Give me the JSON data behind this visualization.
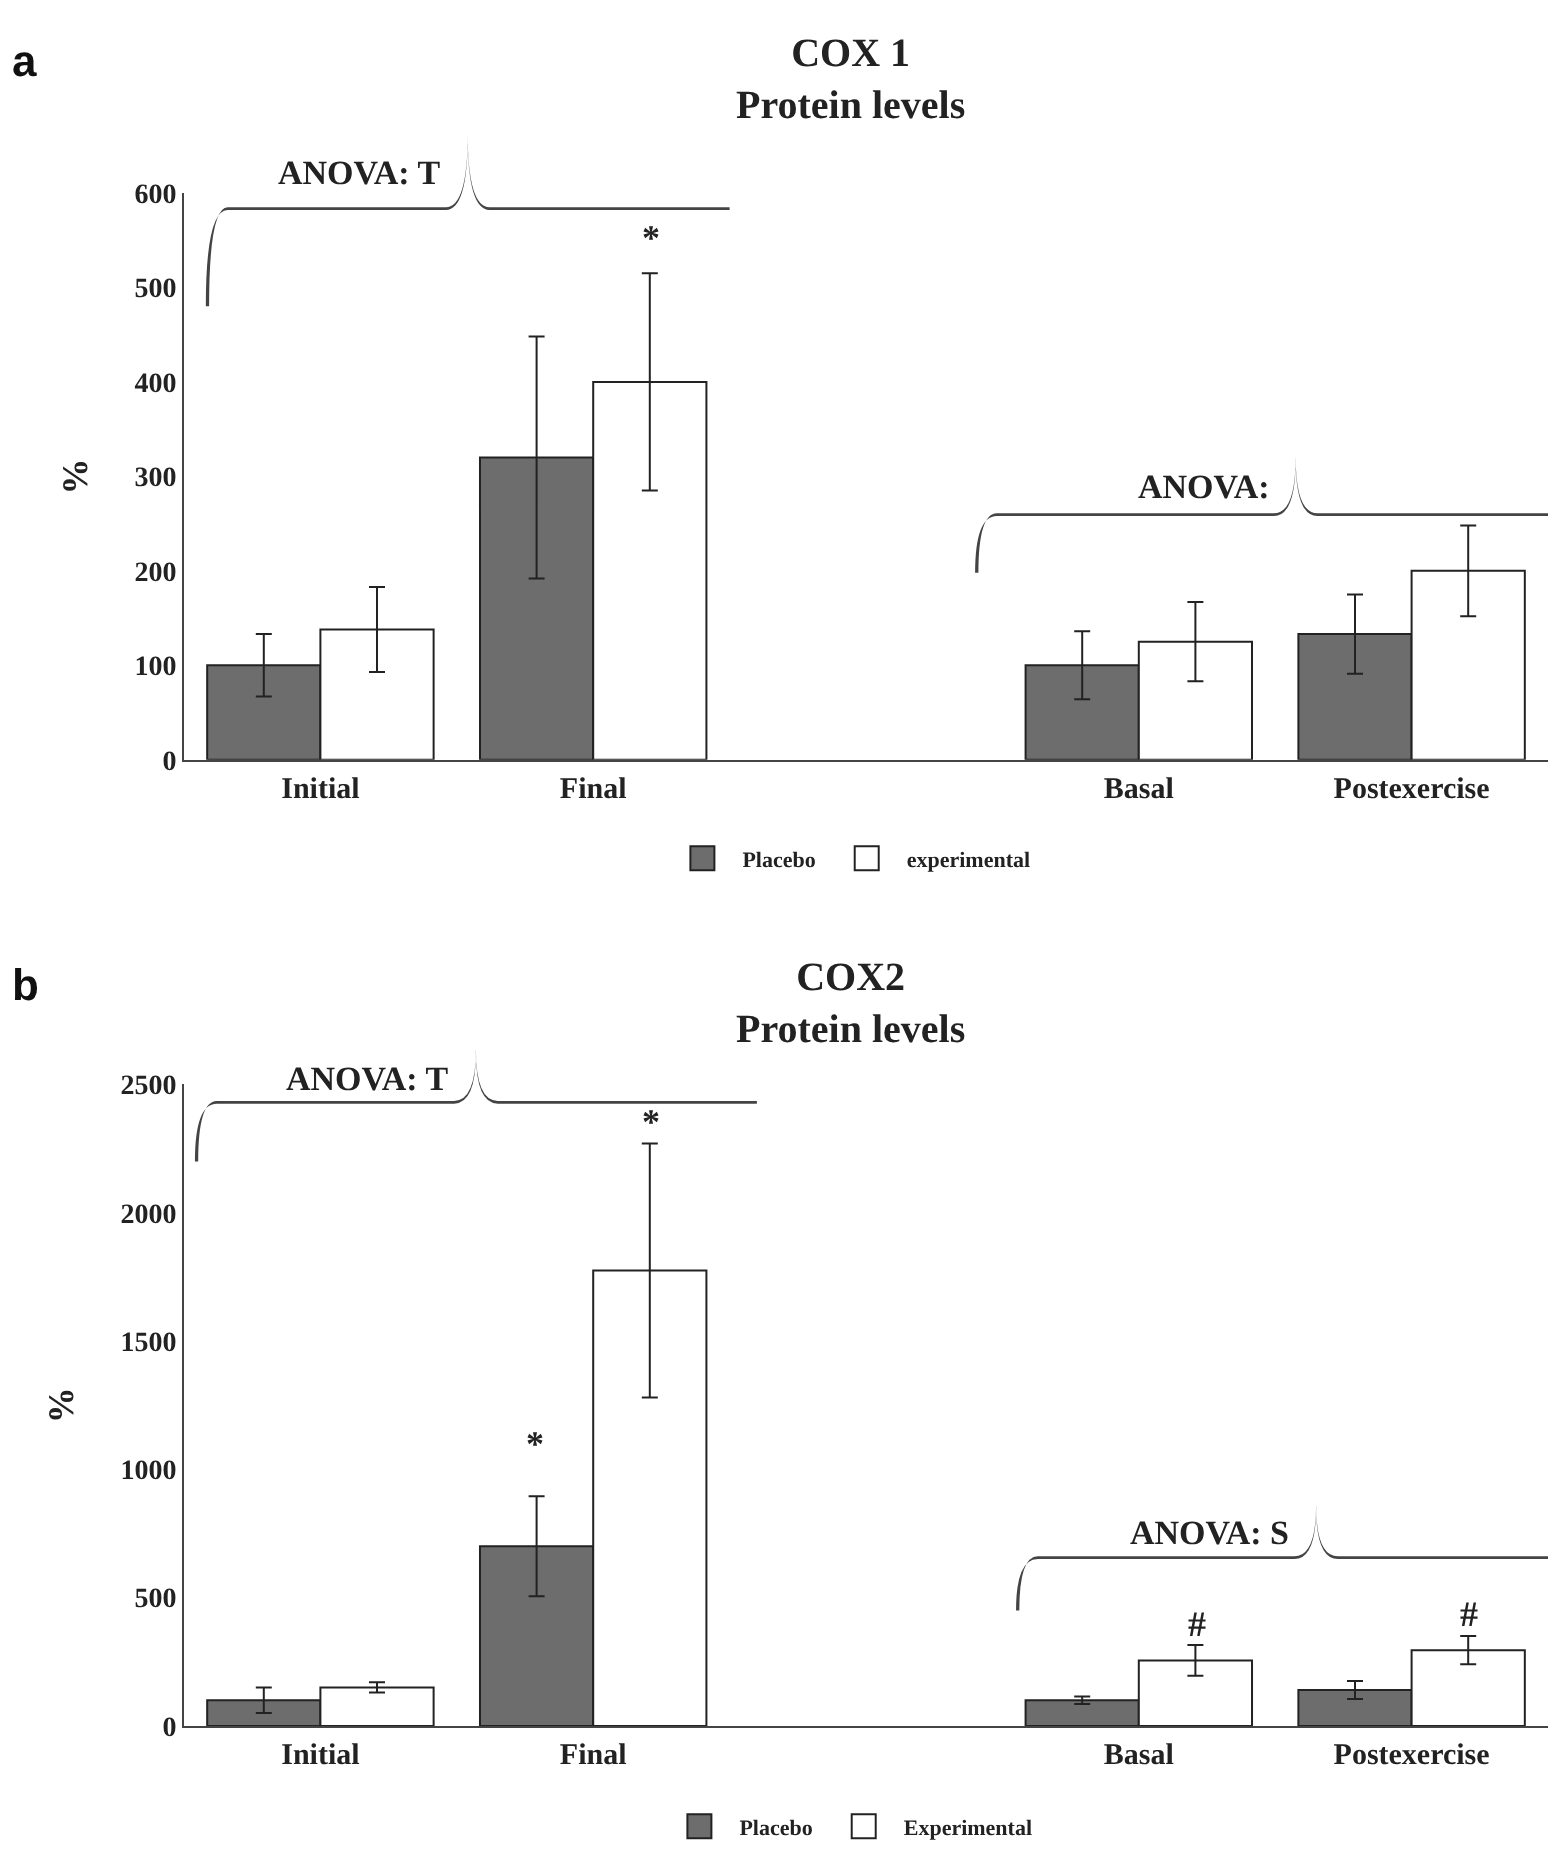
{
  "chart_data": [
    {
      "type": "bar",
      "title": "COX 1\nProtein levels",
      "ylabel": "%",
      "categories": [
        "Initial",
        "Final",
        null,
        "Basal",
        "Postexercise"
      ],
      "series": [
        {
          "name": "Placebo",
          "color": "#6d6d6d",
          "values": [
            100,
            320,
            null,
            100,
            133
          ],
          "errors": [
            33,
            128,
            null,
            36,
            42
          ]
        },
        {
          "name": "experimental",
          "color": "#ffffff",
          "values": [
            138,
            400,
            null,
            125,
            200
          ],
          "errors": [
            45,
            115,
            null,
            42,
            48
          ]
        }
      ],
      "ylim": [
        0,
        600
      ],
      "yticks": [
        0,
        100,
        200,
        300,
        400,
        500,
        600
      ],
      "legend": "bottom",
      "annotations": [
        "a",
        "ANOVA: T",
        "ANOVA:",
        "*"
      ]
    },
    {
      "type": "bar",
      "title": "COX2\nProtein levels",
      "ylabel": "%",
      "categories": [
        "Initial",
        "Final",
        null,
        "Basal",
        "Postexercise"
      ],
      "series": [
        {
          "name": "Placebo",
          "color": "#6d6d6d",
          "values": [
            100,
            700,
            null,
            100,
            140
          ],
          "errors": [
            50,
            195,
            null,
            15,
            35
          ]
        },
        {
          "name": "Experimental",
          "color": "#ffffff",
          "values": [
            150,
            1775,
            null,
            255,
            295
          ],
          "errors": [
            20,
            495,
            null,
            60,
            55
          ]
        }
      ],
      "ylim": [
        0,
        2500
      ],
      "yticks": [
        0,
        500,
        1000,
        1500,
        2000,
        2500
      ],
      "legend": "bottom",
      "annotations": [
        "b",
        "ANOVA: T",
        "ANOVA: S",
        "*",
        "*",
        "#",
        "#"
      ]
    }
  ]
}
